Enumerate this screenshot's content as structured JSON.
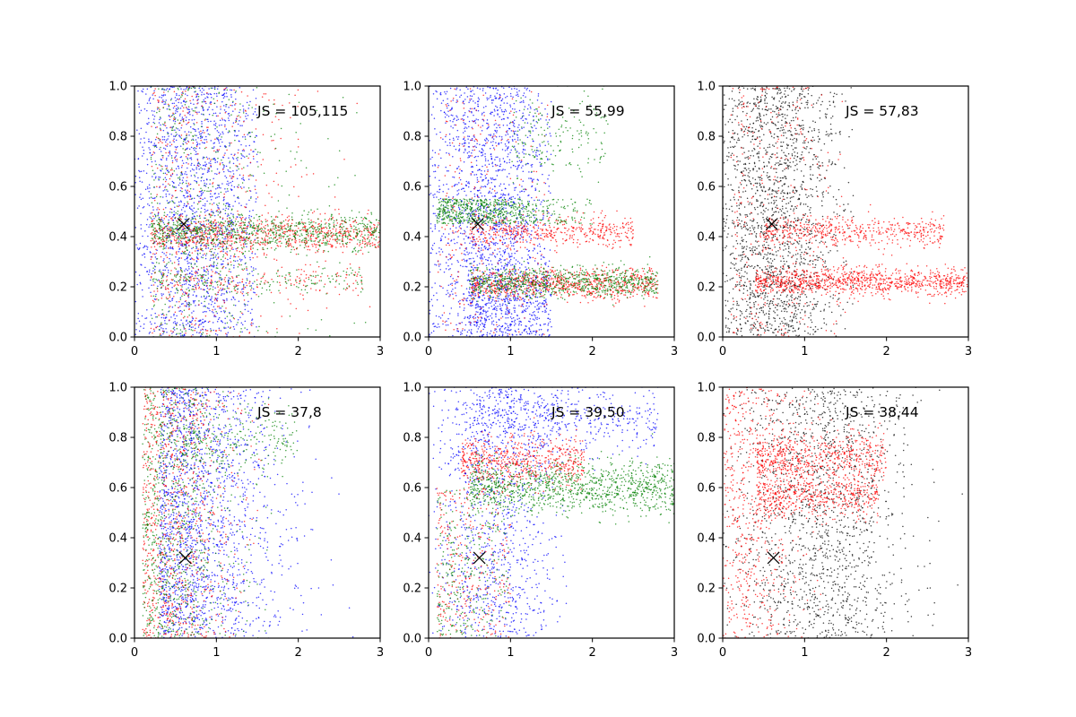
{
  "figure": {
    "background": "#ffffff",
    "axes_color": "#000000"
  },
  "chart_data": [
    {
      "type": "scatter",
      "annotation": "JS = 105,115",
      "xlim": [
        0,
        3
      ],
      "ylim": [
        0,
        1
      ],
      "xticks": [
        "0",
        "1",
        "2",
        "3"
      ],
      "yticks": [
        "0.0",
        "0.2",
        "0.4",
        "0.6",
        "0.8",
        "1.0"
      ],
      "marker": {
        "x": 0.6,
        "y": 0.45,
        "symbol": "x"
      },
      "series": [
        {
          "color": "#0000ff",
          "clusters": [
            {
              "n": 1700,
              "x": [
                0.0,
                1.5
              ],
              "y": [
                0.0,
                1.0
              ],
              "xdist": "bounded",
              "xc": 0.75,
              "xs": 0.45
            }
          ]
        },
        {
          "color": "#ff0000",
          "clusters": [
            {
              "n": 500,
              "x": [
                0.0,
                3.0
              ],
              "y": [
                0.0,
                1.0
              ],
              "xdist": "decay",
              "xc": 0.2,
              "xs": 0.9
            },
            {
              "n": 800,
              "x": [
                0.2,
                3.0
              ],
              "y": [
                0.41,
                0.035
              ],
              "xdist": "uniform"
            },
            {
              "n": 180,
              "x": [
                0.2,
                2.8
              ],
              "y": [
                0.22,
                0.03
              ],
              "xdist": "uniform"
            }
          ]
        },
        {
          "color": "#008000",
          "clusters": [
            {
              "n": 500,
              "x": [
                0.0,
                3.0
              ],
              "y": [
                0.0,
                1.0
              ],
              "xdist": "decay",
              "xc": 0.2,
              "xs": 0.9
            },
            {
              "n": 800,
              "x": [
                0.2,
                3.0
              ],
              "y": [
                0.42,
                0.035
              ],
              "xdist": "uniform"
            },
            {
              "n": 180,
              "x": [
                0.2,
                2.8
              ],
              "y": [
                0.23,
                0.03
              ],
              "xdist": "uniform"
            }
          ]
        }
      ]
    },
    {
      "type": "scatter",
      "annotation": "JS = 55,99",
      "xlim": [
        0,
        3
      ],
      "ylim": [
        0,
        1
      ],
      "xticks": [
        "0",
        "1",
        "2",
        "3"
      ],
      "yticks": [
        "0.0",
        "0.2",
        "0.4",
        "0.6",
        "0.8",
        "1.0"
      ],
      "marker": {
        "x": 0.6,
        "y": 0.45,
        "symbol": "x"
      },
      "series": [
        {
          "color": "#0000ff",
          "clusters": [
            {
              "n": 1700,
              "x": [
                0.0,
                1.5
              ],
              "y": [
                0.0,
                1.0
              ],
              "xdist": "bounded",
              "xc": 0.75,
              "xs": 0.45
            },
            {
              "n": 400,
              "x": [
                0.5,
                1.5
              ],
              "y": [
                0.12,
                0.1
              ],
              "xdist": "uniform"
            }
          ]
        },
        {
          "color": "#ff0000",
          "clusters": [
            {
              "n": 450,
              "x": [
                0.5,
                2.5
              ],
              "y": [
                0.42,
                0.03
              ],
              "xdist": "uniform"
            },
            {
              "n": 800,
              "x": [
                0.5,
                2.8
              ],
              "y": [
                0.21,
                0.03
              ],
              "xdist": "uniform"
            },
            {
              "n": 250,
              "x": [
                0.0,
                1.5
              ],
              "y": [
                0.0,
                1.0
              ],
              "xdist": "decay",
              "xc": 0.1,
              "xs": 0.8
            }
          ]
        },
        {
          "color": "#008000",
          "clusters": [
            {
              "n": 650,
              "x": [
                0.0,
                2.0
              ],
              "y": [
                0.55,
                0.45
              ],
              "xdist": "decay",
              "xc": 0.1,
              "xs": 0.9
            },
            {
              "n": 800,
              "x": [
                0.5,
                2.8
              ],
              "y": [
                0.22,
                0.03
              ],
              "xdist": "uniform"
            },
            {
              "n": 180,
              "x": [
                1.0,
                2.2
              ],
              "y": [
                0.8,
                0.08
              ],
              "xdist": "uniform"
            }
          ]
        }
      ]
    },
    {
      "type": "scatter",
      "annotation": "JS = 57,83",
      "xlim": [
        0,
        3
      ],
      "ylim": [
        0,
        1
      ],
      "xticks": [
        "0",
        "1",
        "2",
        "3"
      ],
      "yticks": [
        "0.0",
        "0.2",
        "0.4",
        "0.6",
        "0.8",
        "1.0"
      ],
      "marker": {
        "x": 0.6,
        "y": 0.45,
        "symbol": "x"
      },
      "series": [
        {
          "color": "#000000",
          "clusters": [
            {
              "n": 1800,
              "x": [
                0.0,
                1.6
              ],
              "y": [
                0.0,
                1.0
              ],
              "xdist": "bounded",
              "xc": 0.6,
              "xs": 0.42
            }
          ]
        },
        {
          "color": "#ff0000",
          "clusters": [
            {
              "n": 500,
              "x": [
                0.5,
                2.7
              ],
              "y": [
                0.42,
                0.03
              ],
              "xdist": "uniform"
            },
            {
              "n": 1000,
              "x": [
                0.4,
                3.0
              ],
              "y": [
                0.22,
                0.028
              ],
              "xdist": "uniform"
            },
            {
              "n": 300,
              "x": [
                0.0,
                1.5
              ],
              "y": [
                0.0,
                1.0
              ],
              "xdist": "decay",
              "xc": 0.1,
              "xs": 0.8
            }
          ]
        }
      ]
    },
    {
      "type": "scatter",
      "annotation": "JS = 37,8",
      "xlim": [
        0,
        3
      ],
      "ylim": [
        0,
        1
      ],
      "xticks": [
        "0",
        "1",
        "2",
        "3"
      ],
      "yticks": [
        "0.0",
        "0.2",
        "0.4",
        "0.6",
        "0.8",
        "1.0"
      ],
      "marker": {
        "x": 0.62,
        "y": 0.32,
        "symbol": "x"
      },
      "series": [
        {
          "color": "#0000ff",
          "clusters": [
            {
              "n": 1800,
              "x": [
                0.0,
                3.0
              ],
              "y": [
                0.0,
                1.0
              ],
              "xdist": "decay",
              "xc": 0.3,
              "xs": 0.7
            }
          ]
        },
        {
          "color": "#ff0000",
          "clusters": [
            {
              "n": 900,
              "x": [
                0.0,
                1.7
              ],
              "y": [
                0.0,
                1.0
              ],
              "xdist": "decay",
              "xc": 0.1,
              "xs": 0.55
            }
          ]
        },
        {
          "color": "#008000",
          "clusters": [
            {
              "n": 900,
              "x": [
                0.0,
                1.7
              ],
              "y": [
                0.0,
                1.0
              ],
              "xdist": "decay",
              "xc": 0.1,
              "xs": 0.55
            },
            {
              "n": 200,
              "x": [
                0.6,
                2.0
              ],
              "y": [
                0.78,
                0.06
              ],
              "xdist": "uniform"
            }
          ]
        }
      ]
    },
    {
      "type": "scatter",
      "annotation": "JS = 39,50",
      "xlim": [
        0,
        3
      ],
      "ylim": [
        0,
        1
      ],
      "xticks": [
        "0",
        "1",
        "2",
        "3"
      ],
      "yticks": [
        "0.0",
        "0.2",
        "0.4",
        "0.6",
        "0.8",
        "1.0"
      ],
      "marker": {
        "x": 0.62,
        "y": 0.32,
        "symbol": "x"
      },
      "series": [
        {
          "color": "#0000ff",
          "clusters": [
            {
              "n": 1000,
              "x": [
                0.0,
                1.7
              ],
              "y": [
                0.0,
                1.0
              ],
              "xdist": "bounded",
              "xc": 0.8,
              "xs": 0.4
            },
            {
              "n": 500,
              "x": [
                0.5,
                2.8
              ],
              "y": [
                0.88,
                0.07
              ],
              "xdist": "uniform"
            }
          ]
        },
        {
          "color": "#ff0000",
          "clusters": [
            {
              "n": 600,
              "x": [
                0.4,
                1.9
              ],
              "y": [
                0.7,
                0.05
              ],
              "xdist": "uniform"
            },
            {
              "n": 300,
              "x": [
                0.0,
                1.0
              ],
              "y": [
                0.0,
                0.6
              ],
              "xdist": "decay",
              "xc": 0.1,
              "xs": 0.6
            }
          ]
        },
        {
          "color": "#008000",
          "clusters": [
            {
              "n": 1100,
              "x": [
                0.5,
                3.0
              ],
              "y": [
                0.6,
                0.05
              ],
              "xdist": "uniform"
            },
            {
              "n": 300,
              "x": [
                0.0,
                1.0
              ],
              "y": [
                0.0,
                0.6
              ],
              "xdist": "decay",
              "xc": 0.1,
              "xs": 0.6
            }
          ]
        }
      ]
    },
    {
      "type": "scatter",
      "annotation": "JS = 38,44",
      "xlim": [
        0,
        3
      ],
      "ylim": [
        0,
        1
      ],
      "xticks": [
        "0",
        "1",
        "2",
        "3"
      ],
      "yticks": [
        "0.0",
        "0.2",
        "0.4",
        "0.6",
        "0.8",
        "1.0"
      ],
      "marker": {
        "x": 0.62,
        "y": 0.32,
        "symbol": "x"
      },
      "series": [
        {
          "color": "#000000",
          "clusters": [
            {
              "n": 1500,
              "x": [
                0.0,
                3.0
              ],
              "y": [
                0.0,
                1.0
              ],
              "xdist": "bounded",
              "xc": 1.2,
              "xs": 0.55
            }
          ]
        },
        {
          "color": "#ff0000",
          "clusters": [
            {
              "n": 600,
              "x": [
                0.0,
                1.2
              ],
              "y": [
                0.0,
                1.0
              ],
              "xdist": "decay",
              "xc": 0.0,
              "xs": 0.5
            },
            {
              "n": 600,
              "x": [
                0.4,
                2.0
              ],
              "y": [
                0.72,
                0.05
              ],
              "xdist": "uniform"
            },
            {
              "n": 500,
              "x": [
                0.4,
                1.9
              ],
              "y": [
                0.56,
                0.04
              ],
              "xdist": "uniform"
            }
          ]
        }
      ]
    }
  ]
}
